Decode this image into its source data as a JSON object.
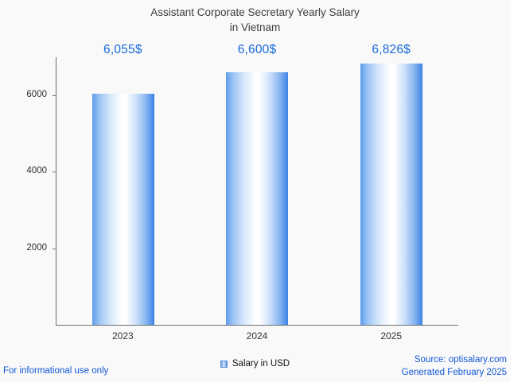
{
  "title": {
    "line1": "Assistant Corporate Secretary Yearly Salary",
    "line2": "in Vietnam"
  },
  "chart_data": {
    "type": "bar",
    "title": "Assistant Corporate Secretary Yearly Salary in Vietnam",
    "categories": [
      "2023",
      "2024",
      "2025"
    ],
    "values": [
      6055,
      6600,
      6826
    ],
    "value_labels": [
      "6,055$",
      "6,600$",
      "6,826$"
    ],
    "series_name": "Salary in USD",
    "xlabel": "",
    "ylabel": "",
    "ylim": [
      0,
      7000
    ],
    "yticks": [
      2000,
      4000,
      6000
    ],
    "grid": false,
    "legend_position": "bottom",
    "bar_gradient": [
      "#5e9ceb",
      "#ffffff",
      "#3c83e6"
    ],
    "value_label_color": "#1769d9"
  },
  "legend": {
    "label": "Salary in USD"
  },
  "footer": {
    "disclaimer": "For informational use only",
    "source": "Source: optisalary.com",
    "generated": "Generated February 2025"
  },
  "colors": {
    "accent_blue": "#1769d9",
    "link_blue": "#1158d6",
    "axis": "#6e6e6e",
    "background": "#f9f9f9"
  }
}
